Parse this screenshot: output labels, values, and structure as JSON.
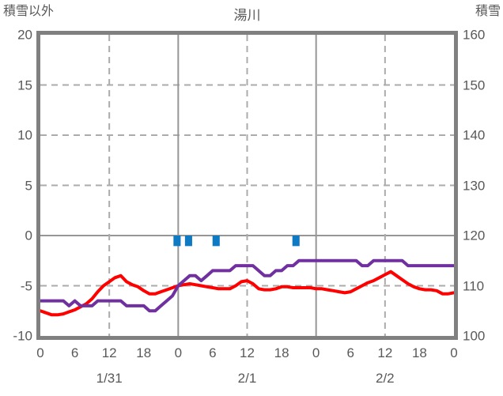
{
  "header": {
    "left_axis_title": "積雪以外",
    "chart_title": "湯川",
    "right_axis_title": "積雪"
  },
  "colors": {
    "red_line": "#ff0000",
    "purple_line": "#7030a0",
    "blue_bar": "#0f7ac4",
    "plot_border": "#808080",
    "grid_solid": "#969696",
    "grid_dashed": "#ababab",
    "text": "#595959",
    "background": "#ffffff"
  },
  "chart_data": {
    "type": "line",
    "title": "湯川",
    "legend": "none",
    "left_axis": {
      "title": "積雪以外",
      "min": -10,
      "max": 20,
      "ticks": [
        20,
        15,
        10,
        5,
        0,
        -5,
        -10
      ]
    },
    "right_axis": {
      "title": "積雪",
      "min": 100,
      "max": 160,
      "ticks": [
        160,
        150,
        140,
        130,
        120,
        110,
        100
      ]
    },
    "x_axis": {
      "hours_span": 72,
      "tick_step_hours": 6,
      "tick_labels": [
        "0",
        "6",
        "12",
        "18",
        "0",
        "6",
        "12",
        "18",
        "0",
        "6",
        "12",
        "18",
        "0"
      ],
      "date_labels": [
        {
          "label": "1/31",
          "hour": 12
        },
        {
          "label": "2/1",
          "hour": 36
        },
        {
          "label": "2/2",
          "hour": 60
        }
      ]
    },
    "gridlines": {
      "horizontal_dashed_left_values": [
        15,
        10,
        5,
        -5
      ],
      "horizontal_solid_left_values": [
        0
      ],
      "vertical_dashed_hours": [
        12,
        36,
        60
      ],
      "vertical_solid_hours": [
        24,
        48
      ]
    },
    "series": [
      {
        "name": "red-line-left-axis",
        "color": "#ff0000",
        "axis": "left",
        "x_step_hours": 1,
        "values": [
          -7.5,
          -7.7,
          -7.9,
          -7.9,
          -7.8,
          -7.6,
          -7.4,
          -7.1,
          -6.8,
          -6.3,
          -5.6,
          -5.0,
          -4.6,
          -4.2,
          -4.0,
          -4.6,
          -4.9,
          -5.1,
          -5.5,
          -5.8,
          -5.8,
          -5.6,
          -5.4,
          -5.2,
          -5.0,
          -4.9,
          -4.8,
          -4.9,
          -5.0,
          -5.1,
          -5.2,
          -5.3,
          -5.3,
          -5.3,
          -5.0,
          -4.6,
          -4.5,
          -4.8,
          -5.3,
          -5.4,
          -5.4,
          -5.3,
          -5.1,
          -5.1,
          -5.2,
          -5.2,
          -5.2,
          -5.2,
          -5.3,
          -5.3,
          -5.4,
          -5.5,
          -5.6,
          -5.7,
          -5.6,
          -5.3,
          -5.0,
          -4.7,
          -4.5,
          -4.2,
          -3.9,
          -3.6,
          -4.0,
          -4.4,
          -4.8,
          -5.1,
          -5.3,
          -5.4,
          -5.4,
          -5.5,
          -5.8,
          -5.8,
          -5.7
        ]
      },
      {
        "name": "purple-line-right-axis",
        "color": "#7030a0",
        "axis": "right",
        "x_step_hours": 1,
        "values": [
          107,
          107,
          107,
          107,
          107,
          106,
          107,
          106,
          106,
          106,
          107,
          107,
          107,
          107,
          107,
          106,
          106,
          106,
          106,
          105,
          105,
          106,
          107,
          108,
          110,
          111,
          112,
          112,
          111,
          112,
          113,
          113,
          113,
          113,
          114,
          114,
          114,
          114,
          113,
          112,
          112,
          113,
          113,
          114,
          114,
          115,
          115,
          115,
          115,
          115,
          115,
          115,
          115,
          115,
          115,
          115,
          114,
          114,
          115,
          115,
          115,
          115,
          115,
          115,
          114,
          114,
          114,
          114,
          114,
          114,
          114,
          114,
          114
        ]
      }
    ],
    "bars": {
      "name": "blue-bars-below-zero",
      "color": "#0f7ac4",
      "bar_width_hours": 1.25,
      "top_left_value": 0,
      "bottom_left_value": -1.05,
      "hours": [
        23.8,
        25.8,
        30.6,
        44.5
      ]
    }
  }
}
